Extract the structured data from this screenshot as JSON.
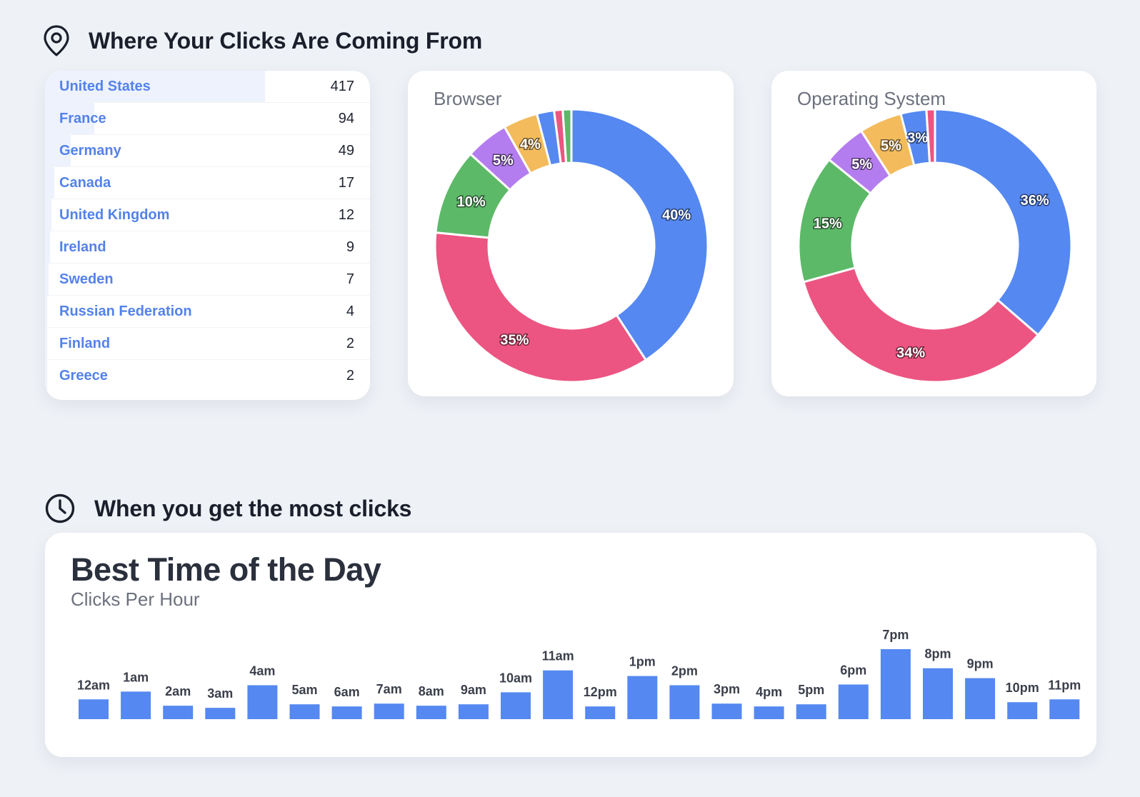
{
  "sections": {
    "location_title": "Where Your Clicks Are Coming From",
    "location_icon": "map-pin-icon",
    "time_title": "When you get the most clicks",
    "time_icon": "clock-icon"
  },
  "countries": [
    {
      "name": "United States",
      "count": "417",
      "value": 417
    },
    {
      "name": "France",
      "count": "94",
      "value": 94
    },
    {
      "name": "Germany",
      "count": "49",
      "value": 49
    },
    {
      "name": "Canada",
      "count": "17",
      "value": 17
    },
    {
      "name": "United Kingdom",
      "count": "12",
      "value": 12
    },
    {
      "name": "Ireland",
      "count": "9",
      "value": 9
    },
    {
      "name": "Sweden",
      "count": "7",
      "value": 7
    },
    {
      "name": "Russian Federation",
      "count": "4",
      "value": 4
    },
    {
      "name": "Finland",
      "count": "2",
      "value": 2
    },
    {
      "name": "Greece",
      "count": "2",
      "value": 2
    }
  ],
  "colors": {
    "blue": "#5588f1",
    "pink": "#ec5581",
    "green": "#5cb968",
    "purple": "#b47def",
    "orange": "#f3bb5c",
    "accent_text": "#5482ea",
    "bar": "#5588f1"
  },
  "chart_data": [
    {
      "type": "pie",
      "title": "Browser",
      "slices": [
        {
          "value": 40,
          "label": "40%",
          "color": "#5588f1"
        },
        {
          "value": 35,
          "label": "35%",
          "color": "#ec5581"
        },
        {
          "value": 10,
          "label": "10%",
          "color": "#5cb968"
        },
        {
          "value": 5,
          "label": "5%",
          "color": "#b47def"
        },
        {
          "value": 4,
          "label": "4%",
          "color": "#f3bb5c"
        },
        {
          "value": 2,
          "label": "",
          "color": "#5588f1"
        },
        {
          "value": 1,
          "label": "",
          "color": "#ec5581"
        },
        {
          "value": 1,
          "label": "",
          "color": "#5cb968"
        }
      ]
    },
    {
      "type": "pie",
      "title": "Operating System",
      "slices": [
        {
          "value": 36,
          "label": "36%",
          "color": "#5588f1"
        },
        {
          "value": 34,
          "label": "34%",
          "color": "#ec5581"
        },
        {
          "value": 15,
          "label": "15%",
          "color": "#5cb968"
        },
        {
          "value": 5,
          "label": "5%",
          "color": "#b47def"
        },
        {
          "value": 5,
          "label": "5%",
          "color": "#f3bb5c"
        },
        {
          "value": 3,
          "label": "3%",
          "color": "#5588f1"
        },
        {
          "value": 1,
          "label": "",
          "color": "#ec5581"
        }
      ]
    },
    {
      "type": "bar",
      "title": "Best Time of the Day",
      "subtitle": "Clicks Per Hour",
      "categories": [
        "12am",
        "1am",
        "2am",
        "3am",
        "4am",
        "5am",
        "6am",
        "7am",
        "8am",
        "9am",
        "10am",
        "11am",
        "12pm",
        "1pm",
        "2pm",
        "3pm",
        "4pm",
        "5pm",
        "6pm",
        "7pm",
        "8pm",
        "9pm",
        "10pm",
        "11pm"
      ],
      "values": [
        28,
        39,
        19,
        16,
        48,
        21,
        18,
        22,
        19,
        21,
        38,
        69,
        18,
        61,
        48,
        22,
        18,
        21,
        49,
        99,
        72,
        58,
        24,
        28
      ],
      "ylim": [
        0,
        100
      ]
    }
  ]
}
